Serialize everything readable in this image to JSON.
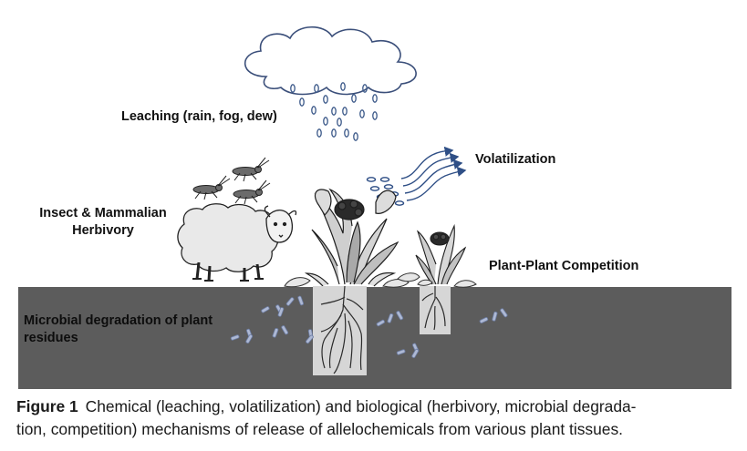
{
  "labels": {
    "leaching": "Leaching (rain, fog, dew)",
    "volatilization": "Volatilization",
    "herbivory_line1": "Insect & Mammalian",
    "herbivory_line2": "Herbivory",
    "competition": "Plant-Plant Competition",
    "microbial_line1": "Microbial degradation of plant",
    "microbial_line2": "residues"
  },
  "caption": {
    "figure_number": "Figure 1",
    "line1": "Chemical (leaching, volatilization) and biological (herbivory, microbial degrada-",
    "line2": "tion, competition) mechanisms of release of allelochemicals from various plant tissues."
  },
  "icons": [
    "cloud-icon",
    "raindrop-icon",
    "vapor-arrow-icon",
    "sheep-icon",
    "grasshopper-icon",
    "plant-icon",
    "root-icon",
    "microbe-icon"
  ],
  "colors": {
    "soil": "#5c5c5c",
    "root_zone": "#d6d6d6",
    "droplet": "#3d5a8a",
    "vapor": "#2f4f86",
    "microbe": "#aeb9d4",
    "ink": "#111111"
  }
}
